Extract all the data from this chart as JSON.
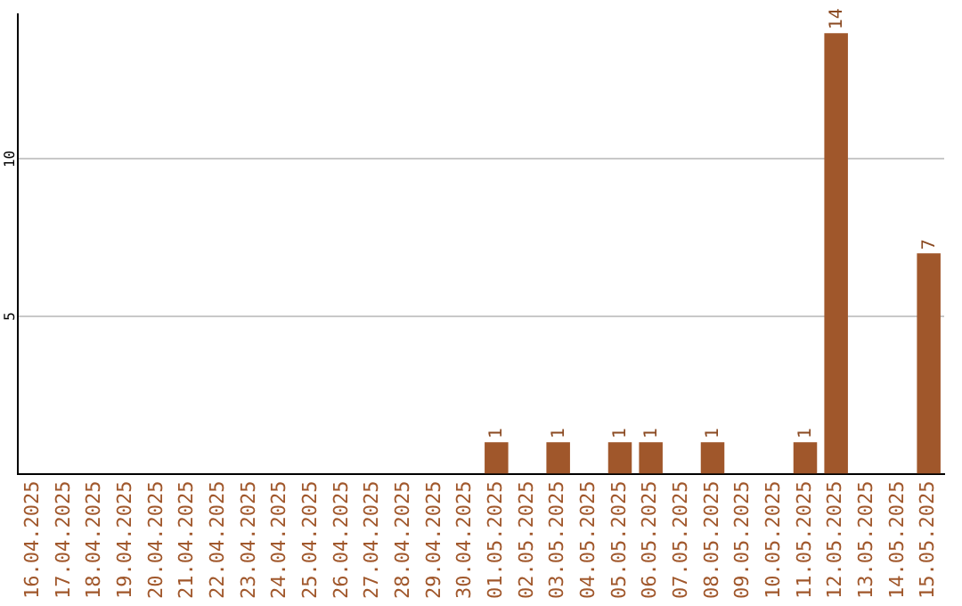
{
  "chart_data": {
    "type": "bar",
    "categories": [
      "16.04.2025",
      "17.04.2025",
      "18.04.2025",
      "19.04.2025",
      "20.04.2025",
      "21.04.2025",
      "22.04.2025",
      "23.04.2025",
      "24.04.2025",
      "25.04.2025",
      "26.04.2025",
      "27.04.2025",
      "28.04.2025",
      "29.04.2025",
      "30.04.2025",
      "01.05.2025",
      "02.05.2025",
      "03.05.2025",
      "04.05.2025",
      "05.05.2025",
      "06.05.2025",
      "07.05.2025",
      "08.05.2025",
      "09.05.2025",
      "10.05.2025",
      "11.05.2025",
      "12.05.2025",
      "13.05.2025",
      "14.05.2025",
      "15.05.2025"
    ],
    "values": [
      0,
      0,
      0,
      0,
      0,
      0,
      0,
      0,
      0,
      0,
      0,
      0,
      0,
      0,
      0,
      1,
      0,
      1,
      0,
      1,
      1,
      0,
      1,
      0,
      0,
      1,
      14,
      0,
      0,
      7
    ],
    "value_labels": [
      null,
      null,
      null,
      null,
      null,
      null,
      null,
      null,
      null,
      null,
      null,
      null,
      null,
      null,
      null,
      "1",
      null,
      "1",
      null,
      "1",
      "1",
      null,
      "1",
      null,
      null,
      "1",
      "14",
      null,
      null,
      "7"
    ],
    "color": "#a0572b",
    "ylim": [
      0,
      14.6
    ],
    "yticks": [
      5,
      10
    ],
    "grid": "y"
  }
}
